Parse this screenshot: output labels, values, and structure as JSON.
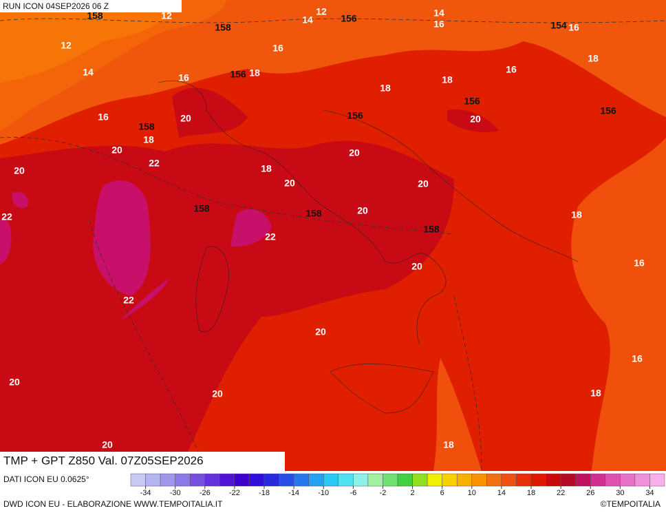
{
  "header": {
    "run": "RUN ICON 04SEP2026 06 Z"
  },
  "map": {
    "title": "TMP + GPT Z850 Val. 07Z05SEP2026",
    "temperature_labels": [
      12,
      12,
      14,
      12,
      14,
      14,
      16,
      16,
      16,
      16,
      18,
      18,
      18,
      16,
      18,
      16,
      20,
      18,
      20,
      22,
      20,
      20,
      20,
      18,
      20,
      20,
      22,
      20,
      22,
      18,
      16,
      20,
      22,
      20,
      16,
      20,
      20,
      18,
      20,
      18
    ],
    "geopotential_labels": [
      158,
      158,
      156,
      154,
      156,
      156,
      156,
      156,
      158,
      158,
      158,
      158
    ]
  },
  "legend": {
    "colors": [
      "#c8c8f4",
      "#b4b4ee",
      "#a096ea",
      "#8c78e6",
      "#7850e0",
      "#6432dc",
      "#5014d8",
      "#4000d0",
      "#3010d8",
      "#2828e0",
      "#2850e8",
      "#2878ec",
      "#28a0f0",
      "#28c8f4",
      "#50e0f0",
      "#90f0e8",
      "#a0f0a0",
      "#70e070",
      "#40d040",
      "#90e020",
      "#f0f000",
      "#f8d000",
      "#f8b000",
      "#f89000",
      "#f07010",
      "#f05010",
      "#e83008",
      "#e01800",
      "#c80a0a",
      "#b40a28",
      "#c01060",
      "#d03090",
      "#e050b0",
      "#e870c8",
      "#f090dc",
      "#f8b0ec"
    ],
    "ticks": [
      -34,
      -30,
      -26,
      -22,
      -18,
      -14,
      -10,
      -6,
      -2,
      2,
      6,
      10,
      14,
      18,
      22,
      26,
      30,
      34
    ]
  },
  "footer": {
    "data_source": "DATI ICON EU 0.0625°",
    "credit": "DWD ICON EU - ELABORAZIONE WWW.TEMPOITALIA.IT",
    "copyright": "©TEMPOITALIA"
  }
}
